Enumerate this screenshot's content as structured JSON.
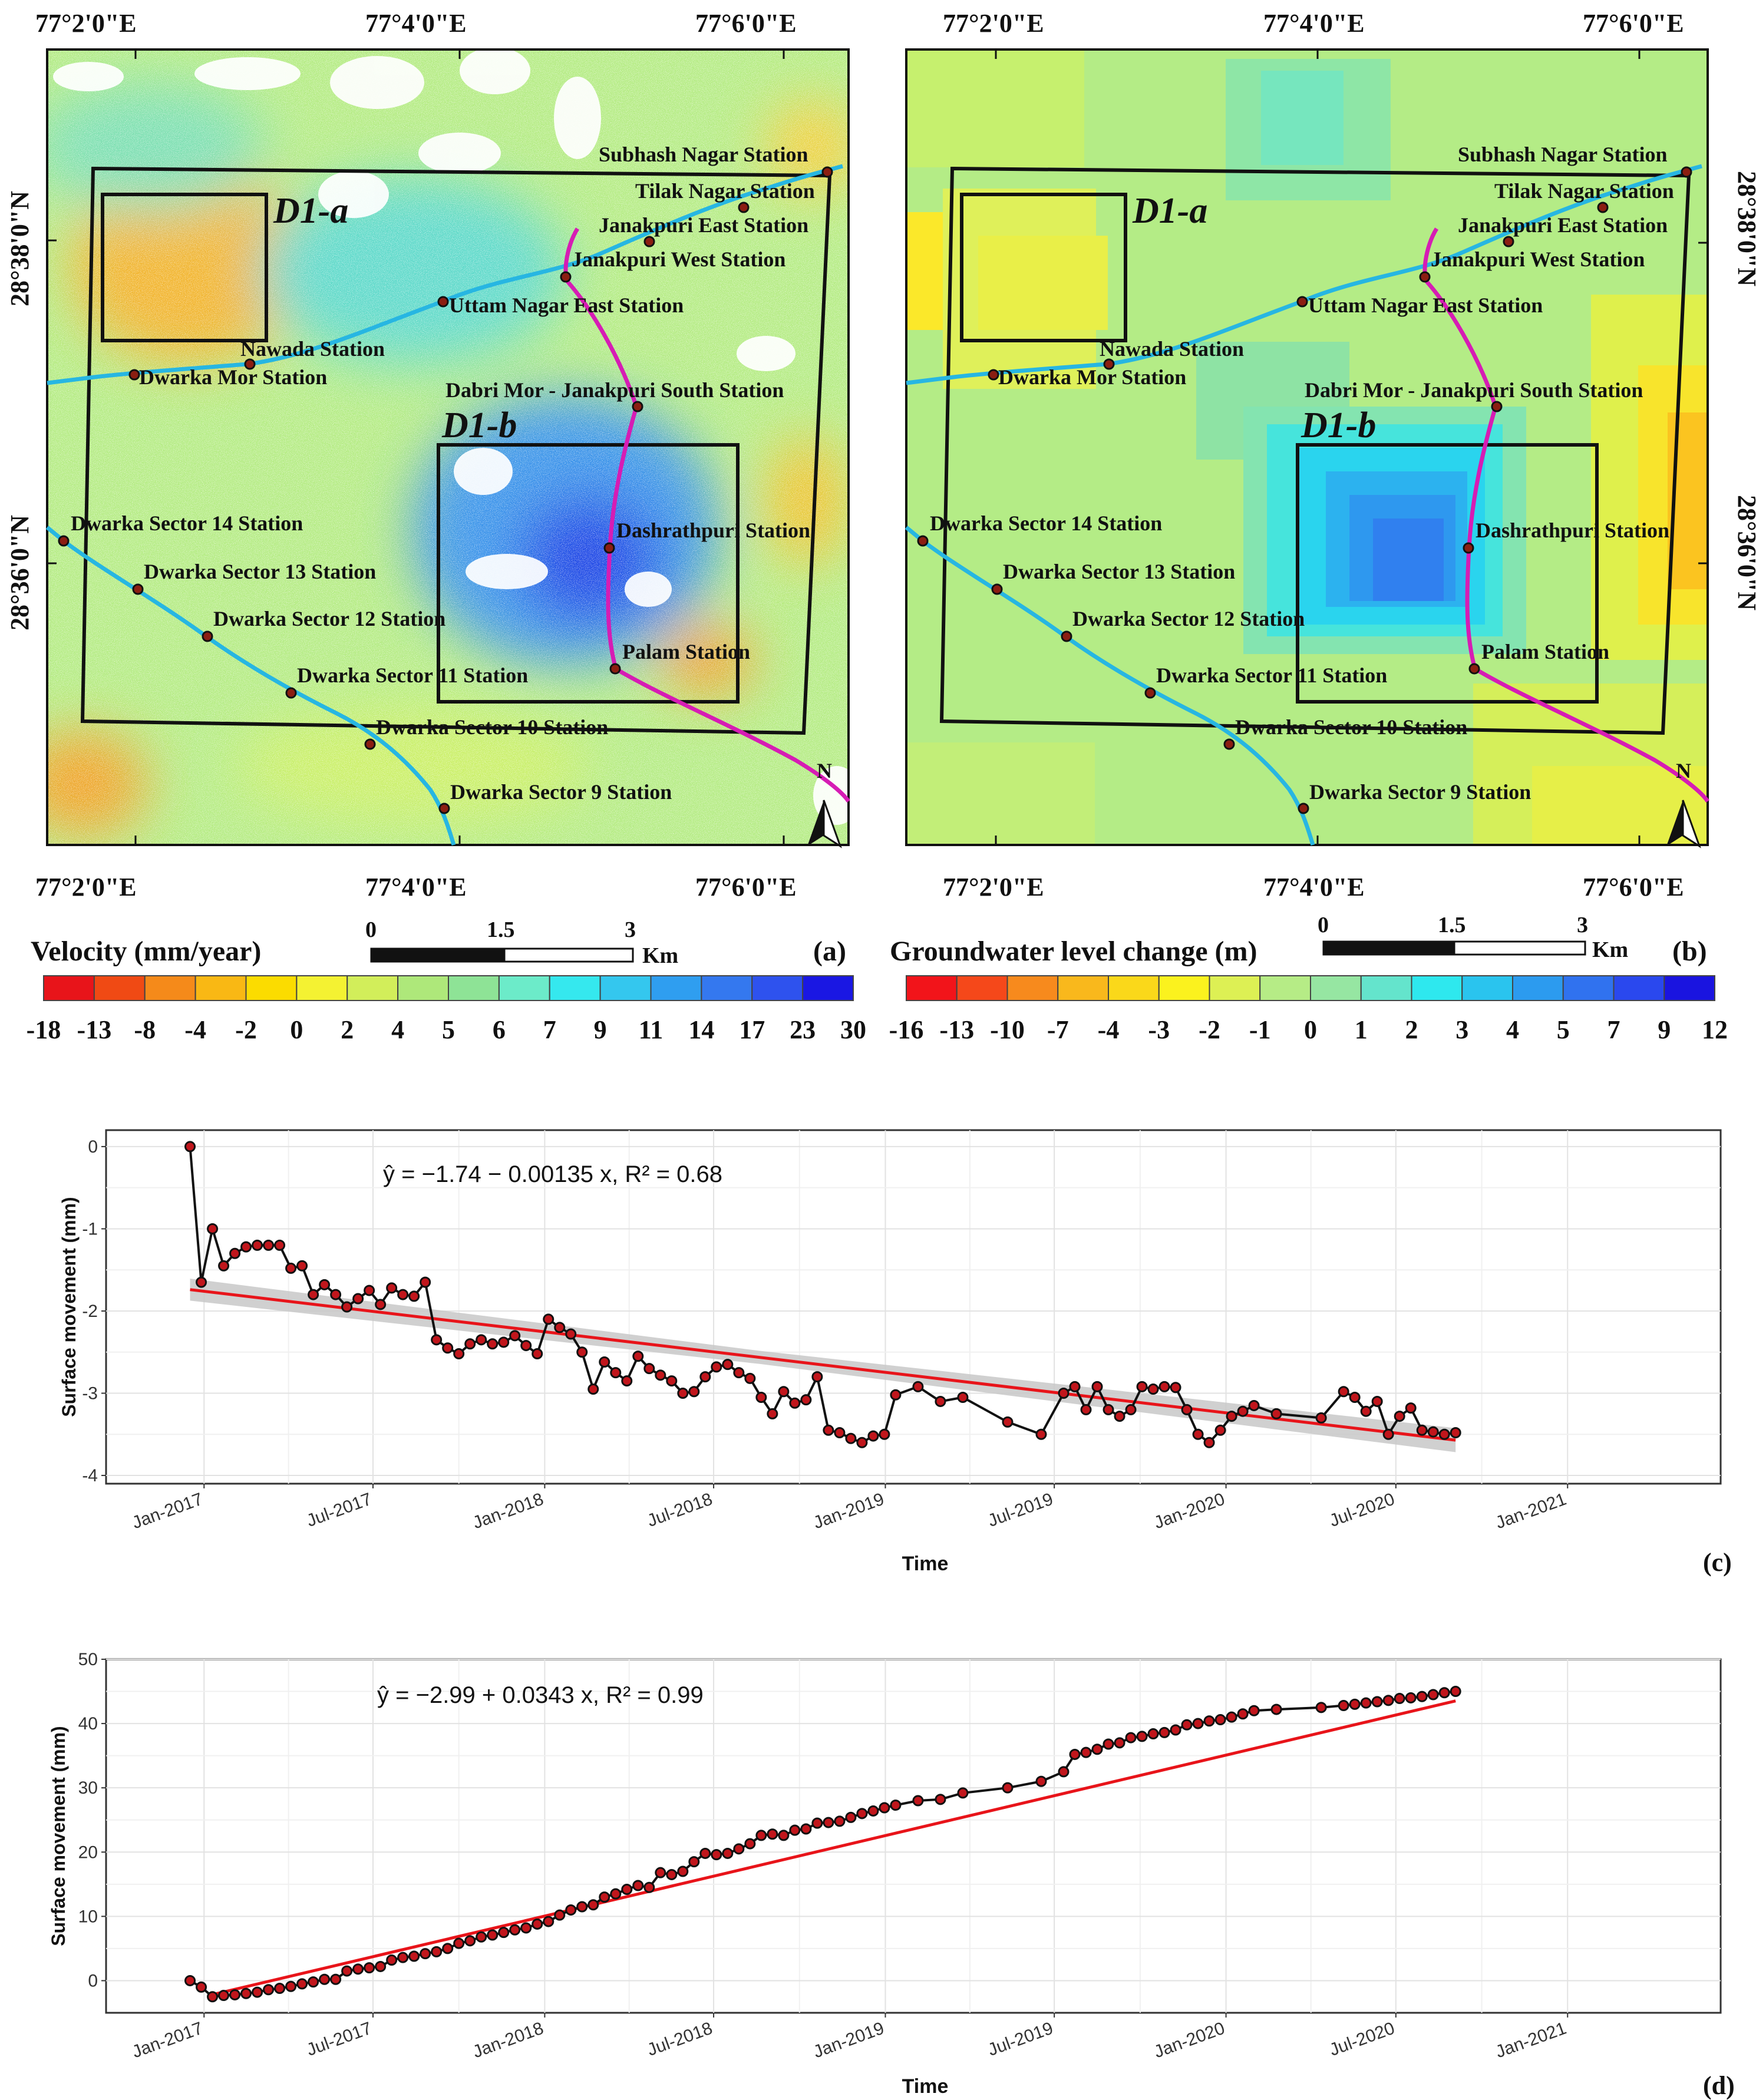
{
  "panels": {
    "a": {
      "label": "(a)",
      "legend_title": "Velocity (mm/year)",
      "legend_ticks": [
        "-18",
        "-13",
        "-8",
        "-4",
        "-2",
        "0",
        "2",
        "4",
        "5",
        "6",
        "7",
        "9",
        "11",
        "14",
        "17",
        "23",
        "30"
      ],
      "legend_colors": [
        "#e8141a",
        "#f04a14",
        "#f58a1a",
        "#f9b814",
        "#fbdc00",
        "#f4f232",
        "#d2ee5a",
        "#aee87a",
        "#8ee396",
        "#6cebc9",
        "#35e8ee",
        "#34c7ee",
        "#2f9ef0",
        "#3478ef",
        "#2e52ee",
        "#1a17e3"
      ]
    },
    "b": {
      "label": "(b)",
      "legend_title": "Groundwater level change (m)",
      "legend_ticks": [
        "-16",
        "-13",
        "-10",
        "-7",
        "-4",
        "-3",
        "-2",
        "-1",
        "0",
        "1",
        "2",
        "3",
        "4",
        "5",
        "7",
        "9",
        "12"
      ],
      "legend_colors": [
        "#f2141a",
        "#f5481a",
        "#f78a1d",
        "#f9b81c",
        "#fad81a",
        "#fbf21e",
        "#ddf054",
        "#b6ec86",
        "#96e6a2",
        "#64e4cc",
        "#2ee8ee",
        "#2ac4ee",
        "#2c9bef",
        "#3072ef",
        "#2a48ee",
        "#1a14e0"
      ]
    }
  },
  "map": {
    "lon_labels": [
      "77°2'0\"E",
      "77°4'0\"E",
      "77°6'0\"E"
    ],
    "lat_labels": [
      "28°38'0\"N",
      "28°36'0\"N"
    ],
    "zone_labels": [
      "D1-a",
      "D1-b"
    ],
    "north_label": "N",
    "scale": {
      "ticks": [
        "0",
        "1.5",
        "3"
      ],
      "unit": "Km"
    },
    "stations": [
      "Subhash Nagar Station",
      "Tilak Nagar Station",
      "Janakpuri East Station",
      "Janakpuri West Station",
      "Uttam Nagar East Station",
      "Nawada Station",
      "Dwarka Mor Station",
      "Dabri Mor - Janakpuri South Station",
      "Dwarka Sector 14 Station",
      "Dashrathpuri Station",
      "Dwarka Sector 13 Station",
      "Dwarka Sector 12 Station",
      "Palam Station",
      "Dwarka Sector 11 Station",
      "Dwarka Sector 10 Station",
      "Dwarka Sector 9 Station"
    ]
  },
  "chart_data": [
    {
      "id": "c",
      "type": "scatter",
      "panel_label": "(c)",
      "equation": "ŷ = −1.74 − 0.00135 x, R² = 0.68",
      "xlabel": "Time",
      "ylabel": "Surface movement (mm)",
      "x_ticks": [
        "Jan-2017",
        "Jul-2017",
        "Jan-2018",
        "Jul-2018",
        "Jan-2019",
        "Jul-2019",
        "Jan-2020",
        "Jul-2020",
        "Jan-2021"
      ],
      "xlim": [
        -90,
        1640
      ],
      "ylim": [
        -4.1,
        0.2
      ],
      "y_ticks": [
        "-4",
        "-3",
        "-2",
        "-1",
        "0"
      ],
      "fit": {
        "intercept": -1.74,
        "slope": -0.00135
      },
      "x_days": [
        0,
        12,
        24,
        36,
        48,
        60,
        72,
        84,
        96,
        108,
        120,
        132,
        144,
        156,
        168,
        180,
        192,
        204,
        216,
        228,
        240,
        252,
        264,
        276,
        288,
        300,
        312,
        324,
        336,
        348,
        360,
        372,
        384,
        396,
        408,
        420,
        432,
        444,
        456,
        468,
        480,
        492,
        504,
        516,
        528,
        540,
        552,
        564,
        576,
        588,
        600,
        612,
        624,
        636,
        648,
        660,
        672,
        684,
        696,
        708,
        720,
        732,
        744,
        756,
        780,
        804,
        828,
        876,
        912,
        936,
        948,
        960,
        972,
        984,
        996,
        1008,
        1020,
        1032,
        1044,
        1056,
        1068,
        1080,
        1092,
        1104,
        1116,
        1128,
        1140,
        1164,
        1212,
        1236,
        1248,
        1260,
        1272,
        1284,
        1296,
        1308,
        1320,
        1332,
        1344,
        1356
      ],
      "y_values": [
        0,
        -1.65,
        -1.0,
        -1.45,
        -1.3,
        -1.22,
        -1.2,
        -1.2,
        -1.2,
        -1.48,
        -1.45,
        -1.8,
        -1.68,
        -1.8,
        -1.95,
        -1.85,
        -1.75,
        -1.92,
        -1.72,
        -1.8,
        -1.82,
        -1.65,
        -2.35,
        -2.45,
        -2.52,
        -2.4,
        -2.35,
        -2.4,
        -2.38,
        -2.3,
        -2.42,
        -2.52,
        -2.1,
        -2.2,
        -2.28,
        -2.5,
        -2.95,
        -2.62,
        -2.75,
        -2.85,
        -2.55,
        -2.7,
        -2.78,
        -2.85,
        -3.0,
        -2.98,
        -2.8,
        -2.68,
        -2.65,
        -2.75,
        -2.82,
        -3.05,
        -3.25,
        -2.98,
        -3.12,
        -3.08,
        -2.8,
        -3.45,
        -3.48,
        -3.55,
        -3.6,
        -3.52,
        -3.5,
        -3.02,
        -2.92,
        -3.1,
        -3.05,
        -3.35,
        -3.5,
        -3.0,
        -2.92,
        -3.2,
        -2.92,
        -3.2,
        -3.28,
        -3.2,
        -2.92,
        -2.95,
        -2.92,
        -2.93,
        -3.2,
        -3.5,
        -3.6,
        -3.45,
        -3.28,
        -3.22,
        -3.15,
        -3.25,
        -3.3,
        -2.98,
        -3.05,
        -3.22,
        -3.1,
        -3.5,
        -3.28,
        -3.18,
        -3.45,
        -3.47,
        -3.5,
        -3.48
      ]
    },
    {
      "id": "d",
      "type": "scatter",
      "panel_label": "(d)",
      "equation": "ŷ = −2.99 + 0.0343 x, R² = 0.99",
      "xlabel": "Time",
      "ylabel": "Surface movement (mm)",
      "x_ticks": [
        "Jan-2017",
        "Jul-2017",
        "Jan-2018",
        "Jul-2018",
        "Jan-2019",
        "Jul-2019",
        "Jan-2020",
        "Jul-2020",
        "Jan-2021"
      ],
      "xlim": [
        -90,
        1640
      ],
      "ylim": [
        -5,
        50
      ],
      "y_ticks": [
        "0",
        "10",
        "20",
        "30",
        "40",
        "50"
      ],
      "fit": {
        "intercept": -2.99,
        "slope": 0.0343
      },
      "x_days": [
        0,
        12,
        24,
        36,
        48,
        60,
        72,
        84,
        96,
        108,
        120,
        132,
        144,
        156,
        168,
        180,
        192,
        204,
        216,
        228,
        240,
        252,
        264,
        276,
        288,
        300,
        312,
        324,
        336,
        348,
        360,
        372,
        384,
        396,
        408,
        420,
        432,
        444,
        456,
        468,
        480,
        492,
        504,
        516,
        528,
        540,
        552,
        564,
        576,
        588,
        600,
        612,
        624,
        636,
        648,
        660,
        672,
        684,
        696,
        708,
        720,
        732,
        744,
        756,
        780,
        804,
        828,
        876,
        912,
        936,
        948,
        960,
        972,
        984,
        996,
        1008,
        1020,
        1032,
        1044,
        1056,
        1068,
        1080,
        1092,
        1104,
        1116,
        1128,
        1140,
        1164,
        1212,
        1236,
        1248,
        1260,
        1272,
        1284,
        1296,
        1308,
        1320,
        1332,
        1344,
        1356
      ],
      "y_values": [
        0,
        -1,
        -2.5,
        -2.3,
        -2.2,
        -2.0,
        -1.8,
        -1.4,
        -1.2,
        -0.9,
        -0.5,
        -0.2,
        0.2,
        0.2,
        1.5,
        1.8,
        2.0,
        2.2,
        3.2,
        3.6,
        3.8,
        4.2,
        4.5,
        5.0,
        5.8,
        6.2,
        6.8,
        7.1,
        7.5,
        7.9,
        8.2,
        8.8,
        9.2,
        10.2,
        11.0,
        11.5,
        11.8,
        13.0,
        13.5,
        14.2,
        14.8,
        14.5,
        16.8,
        16.5,
        17.0,
        18.5,
        19.8,
        19.6,
        19.8,
        20.5,
        21.3,
        22.6,
        22.8,
        22.6,
        23.4,
        23.6,
        24.5,
        24.6,
        24.8,
        25.4,
        26.0,
        26.4,
        26.9,
        27.3,
        28.0,
        28.2,
        29.2,
        30.0,
        31.0,
        32.5,
        35.2,
        35.5,
        36.0,
        36.8,
        37.0,
        37.8,
        38.0,
        38.4,
        38.6,
        39.0,
        39.8,
        40.0,
        40.4,
        40.6,
        41.0,
        41.5,
        42.0,
        42.2,
        42.5,
        42.8,
        43.0,
        43.2,
        43.4,
        43.6,
        43.9,
        44.0,
        44.2,
        44.5,
        44.8,
        45.0
      ]
    }
  ]
}
